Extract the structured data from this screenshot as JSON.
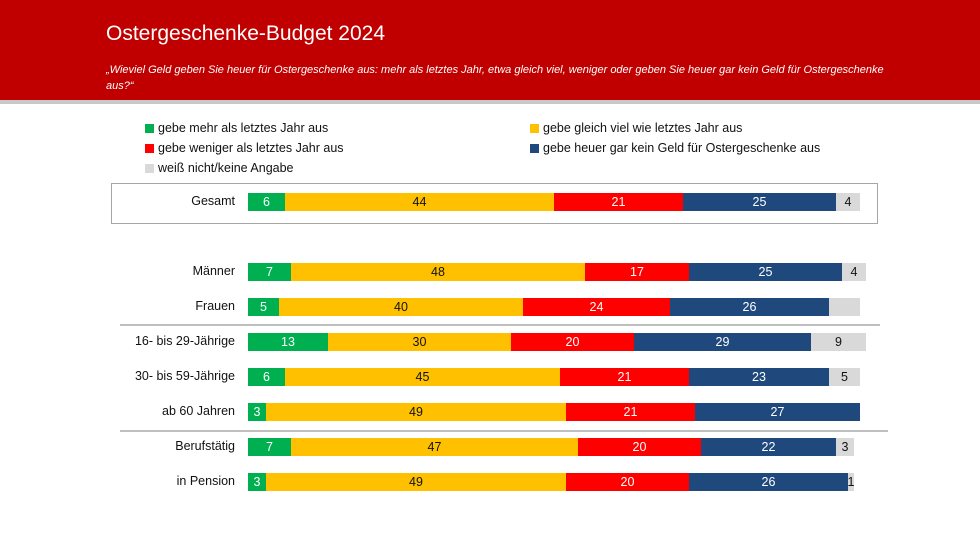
{
  "header": {
    "title": "Ostergeschenke-Budget 2024",
    "subtitle": "„Wieviel Geld geben Sie heuer für Ostergeschenke aus: mehr als letztes Jahr, etwa gleich viel, weniger oder geben Sie heuer gar kein Geld für Ostergeschenke aus?“"
  },
  "chart_data": {
    "type": "bar",
    "orientation": "horizontal",
    "stacked": true,
    "xlim": [
      0,
      100
    ],
    "legend_placement": "top",
    "series": [
      {
        "name": "gebe mehr als letztes Jahr aus",
        "color": "#00b050",
        "text_color": "#ffffff"
      },
      {
        "name": "gebe gleich viel wie letztes Jahr aus",
        "color": "#ffc000",
        "text_color": "#111111"
      },
      {
        "name": "gebe weniger als letztes Jahr aus",
        "color": "#ff0000",
        "text_color": "#ffffff"
      },
      {
        "name": "gebe heuer gar kein Geld für Ostergeschenke aus",
        "color": "#1f497d",
        "text_color": "#ffffff"
      },
      {
        "name": "weiß nicht/keine Angabe",
        "color": "#d9d9d9",
        "text_color": "#111111"
      }
    ],
    "categories": [
      "Gesamt",
      "Männer",
      "Frauen",
      "16- bis 29-Jährige",
      "30- bis 59-Jährige",
      "ab 60 Jahren",
      "Berufstätig",
      "in Pension"
    ],
    "values": [
      [
        6,
        44,
        21,
        25,
        4
      ],
      [
        7,
        48,
        17,
        25,
        4
      ],
      [
        5,
        40,
        24,
        26,
        5
      ],
      [
        13,
        30,
        20,
        29,
        9
      ],
      [
        6,
        45,
        21,
        23,
        5
      ],
      [
        3,
        49,
        21,
        27,
        0
      ],
      [
        7,
        47,
        20,
        22,
        3
      ],
      [
        3,
        49,
        20,
        26,
        1
      ]
    ],
    "labels": [
      [
        "6",
        "44",
        "21",
        "25",
        "4"
      ],
      [
        "7",
        "48",
        "17",
        "25",
        "4"
      ],
      [
        "5",
        "40",
        "24",
        "26",
        ""
      ],
      [
        "13",
        "30",
        "20",
        "29",
        "9"
      ],
      [
        "6",
        "45",
        "21",
        "23",
        "5"
      ],
      [
        "3",
        "49",
        "21",
        "27",
        ""
      ],
      [
        "7",
        "47",
        "20",
        "22",
        "3"
      ],
      [
        "3",
        "49",
        "20",
        "26",
        "1"
      ]
    ]
  }
}
